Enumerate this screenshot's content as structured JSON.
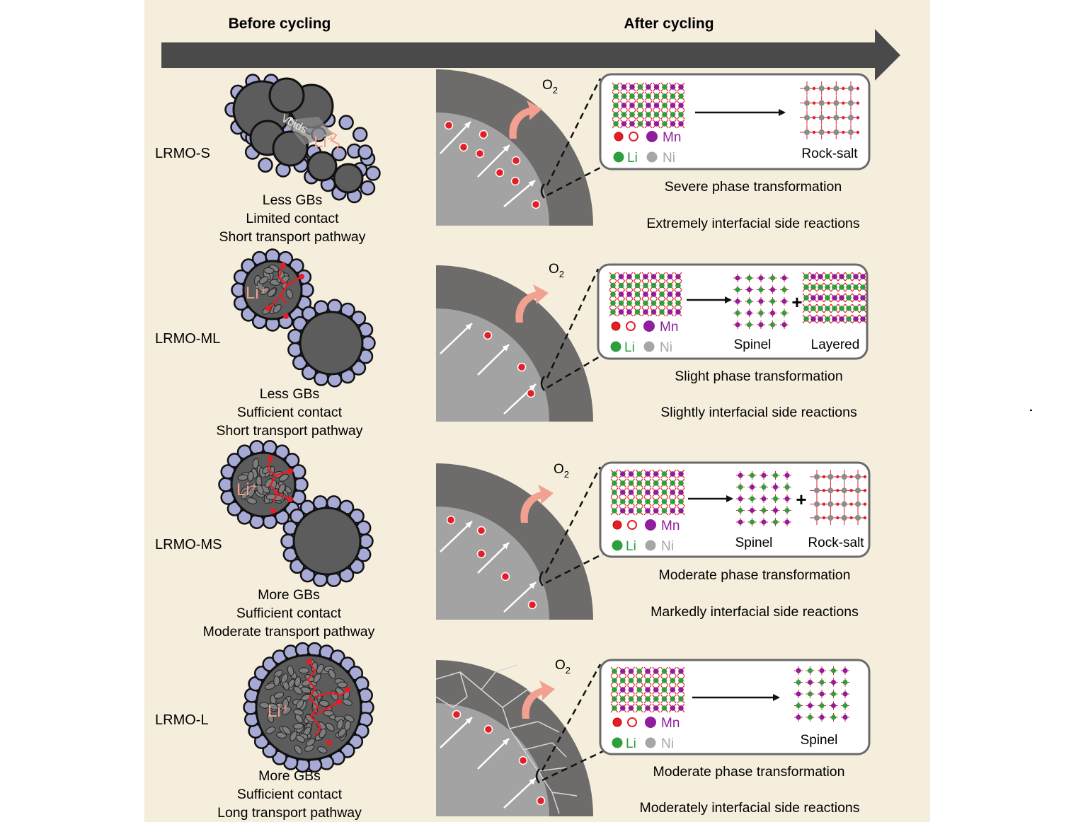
{
  "header": {
    "left": "Before cycling",
    "right": "After cycling"
  },
  "legend": {
    "mn": "Mn",
    "li": "Li",
    "ni": "Ni"
  },
  "o2": {
    "base": "O",
    "sub": "2"
  },
  "li_label": "Li⁺",
  "voids_label": "Voids",
  "rows": [
    {
      "label": "LRMO-S",
      "captions": [
        "Less GBs",
        "Limited contact",
        "Short transport pathway"
      ],
      "products": [
        "Rock-salt"
      ],
      "phase": "Severe phase transformation",
      "side": "Extremely interfacial side reactions"
    },
    {
      "label": "LRMO-ML",
      "captions": [
        "Less GBs",
        "Sufficient contact",
        "Short transport pathway"
      ],
      "products": [
        "Spinel",
        "Layered"
      ],
      "phase": "Slight phase transformation",
      "side": "Slightly  interfacial side reactions"
    },
    {
      "label": "LRMO-MS",
      "captions": [
        "More GBs",
        "Sufficient contact",
        "Moderate transport pathway"
      ],
      "products": [
        "Spinel",
        "Rock-salt"
      ],
      "phase": "Moderate phase transformation",
      "side": "Markedly interfacial side reactions"
    },
    {
      "label": "LRMO-L",
      "captions": [
        "More GBs",
        "Sufficient contact",
        "Long transport pathway"
      ],
      "products": [
        "Spinel"
      ],
      "phase": "Moderate phase transformation",
      "side": "Moderately interfacial side reactions"
    }
  ],
  "colors": {
    "background": "#f6eedd",
    "arrow": "#4a4a4a",
    "shell": "#6e6b6b",
    "core": "#a3a3a3",
    "shell_dark": "#5f5c5c",
    "red": "#e41e26",
    "pink_arrow": "#f2a090",
    "li_green": "#2ca03c",
    "mn_purple": "#8e1e9e",
    "ni_grey": "#a6a6a6",
    "nanoparticle": "#a7aad4",
    "primary": "#5c5c5c"
  }
}
